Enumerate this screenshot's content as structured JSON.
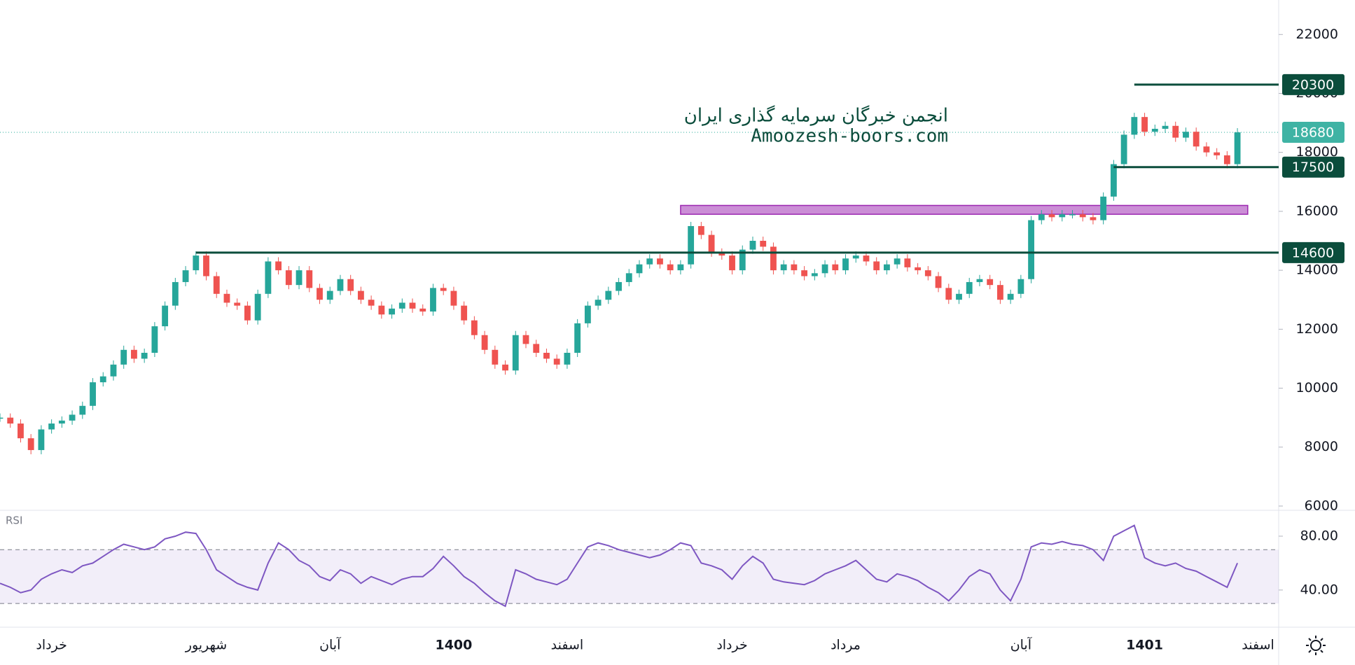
{
  "watermark": {
    "line1": "انجمن خبرگان سرمایه گذاری ایران",
    "line2": "Amoozesh-boors.com"
  },
  "chart_data": [
    {
      "type": "candlestick",
      "up_color": "#26a69a",
      "down_color": "#ef5350",
      "values": [
        9000,
        8800,
        8300,
        7900,
        8600,
        8800,
        8900,
        9100,
        9400,
        10200,
        10400,
        10800,
        11300,
        11000,
        11200,
        12100,
        12800,
        13600,
        14000,
        14500,
        13800,
        13200,
        12900,
        12800,
        12300,
        13200,
        14300,
        14000,
        13500,
        14000,
        13400,
        13000,
        13300,
        13700,
        13300,
        13000,
        12800,
        12500,
        12700,
        12900,
        12700,
        12600,
        13400,
        13300,
        12800,
        12300,
        11800,
        11300,
        10800,
        10600,
        11800,
        11500,
        11200,
        11000,
        10800,
        11200,
        12200,
        12800,
        13000,
        13300,
        13600,
        13900,
        14200,
        14400,
        14200,
        14000,
        14200,
        15500,
        15200,
        14600,
        14500,
        14000,
        14700,
        15000,
        14800,
        14000,
        14200,
        14000,
        13800,
        13900,
        14200,
        14000,
        14400,
        14500,
        14300,
        14000,
        14200,
        14400,
        14100,
        14000,
        13800,
        13400,
        13000,
        13200,
        13600,
        13700,
        13500,
        13000,
        13200,
        13700,
        15700,
        15900,
        15800,
        15900,
        15900,
        15800,
        15700,
        16500,
        17600,
        18600,
        19200,
        18700,
        18800,
        18900,
        18500,
        18700,
        18200,
        18000,
        17900,
        17600,
        18680
      ],
      "xlim": [
        0,
        124
      ],
      "xticks": [
        {
          "value": 5,
          "label": "خرداد"
        },
        {
          "value": 20,
          "label": "شهریور"
        },
        {
          "value": 32,
          "label": "آبان"
        },
        {
          "value": 44,
          "label": "1400",
          "bold": true
        },
        {
          "value": 55,
          "label": "اسفند"
        },
        {
          "value": 71,
          "label": "خرداد"
        },
        {
          "value": 82,
          "label": "مرداد"
        },
        {
          "value": 99,
          "label": "آبان"
        },
        {
          "value": 111,
          "label": "1401",
          "bold": true
        },
        {
          "value": 122,
          "label": "اسفند"
        }
      ],
      "ylim": [
        5880,
        23170
      ],
      "yticks": [
        6000,
        8000,
        10000,
        12000,
        14000,
        16000,
        18000,
        20000,
        22000
      ],
      "levels": [
        {
          "value": 20300,
          "start": 110,
          "color": "#0b4d3c"
        },
        {
          "value": 17500,
          "start": 108,
          "color": "#0b4d3c"
        },
        {
          "value": 14600,
          "start": 19,
          "color": "#0b4d3c"
        }
      ],
      "zone": {
        "low": 15900,
        "high": 16200,
        "start": 66,
        "end": 121,
        "color": "#ba68c8"
      },
      "last_price": {
        "value": 18680,
        "color": "#3fb3a4"
      }
    },
    {
      "type": "line",
      "name": "RSI",
      "color": "#7e57c2",
      "values": [
        45,
        42,
        38,
        40,
        48,
        52,
        55,
        53,
        58,
        60,
        65,
        70,
        74,
        72,
        70,
        72,
        78,
        80,
        83,
        82,
        70,
        55,
        50,
        45,
        42,
        40,
        60,
        75,
        70,
        62,
        58,
        50,
        47,
        55,
        52,
        45,
        50,
        47,
        44,
        48,
        50,
        50,
        56,
        65,
        58,
        50,
        45,
        38,
        32,
        28,
        55,
        52,
        48,
        46,
        44,
        48,
        60,
        72,
        75,
        73,
        70,
        68,
        66,
        64,
        66,
        70,
        75,
        73,
        60,
        58,
        55,
        48,
        58,
        65,
        60,
        48,
        46,
        45,
        44,
        47,
        52,
        55,
        58,
        62,
        55,
        48,
        46,
        52,
        50,
        47,
        42,
        38,
        32,
        40,
        50,
        55,
        52,
        40,
        32,
        48,
        72,
        75,
        74,
        76,
        74,
        73,
        70,
        62,
        80,
        84,
        88,
        64,
        60,
        58,
        60,
        56,
        54,
        50,
        46,
        42,
        60
      ],
      "xlim": [
        0,
        124
      ],
      "ylim": [
        12.9,
        98.7
      ],
      "yticks": [
        {
          "value": 40,
          "label": "40.00"
        },
        {
          "value": 80,
          "label": "80.00"
        }
      ],
      "bands": [
        30,
        70
      ]
    }
  ]
}
